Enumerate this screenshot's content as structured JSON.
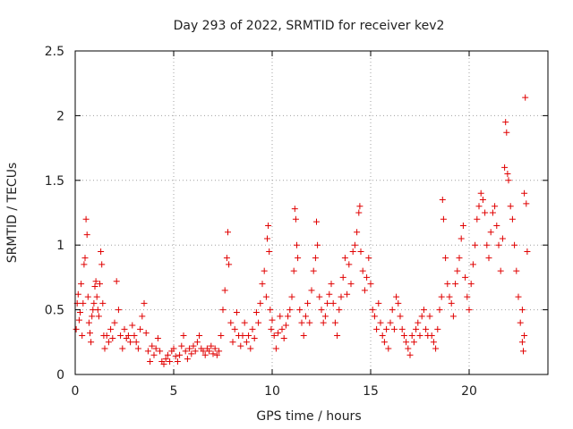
{
  "chart_data": {
    "type": "scatter",
    "title": "Day 293 of 2022, SRMTID for receiver kev2",
    "xlabel": "GPS time / hours",
    "ylabel": "SRMTID / TECUs",
    "xlim": [
      0,
      24
    ],
    "ylim": [
      0,
      2.5
    ],
    "xticks": [
      0,
      5,
      10,
      15,
      20
    ],
    "yticks": [
      0,
      0.5,
      1,
      1.5,
      2,
      2.5
    ],
    "xtick_labels": [
      "0",
      "5",
      "10",
      "15",
      "20"
    ],
    "ytick_labels": [
      "0",
      "0.5",
      "1",
      "1.5",
      "2",
      "2.5"
    ],
    "grid": true,
    "marker": "plus",
    "color": "#e00000",
    "series": [
      {
        "name": "kev2",
        "points": [
          [
            0.05,
            0.35
          ],
          [
            0.1,
            0.55
          ],
          [
            0.15,
            0.62
          ],
          [
            0.2,
            0.42
          ],
          [
            0.25,
            0.48
          ],
          [
            0.3,
            0.7
          ],
          [
            0.35,
            0.3
          ],
          [
            0.4,
            0.55
          ],
          [
            0.45,
            0.85
          ],
          [
            0.5,
            0.9
          ],
          [
            0.55,
            1.2
          ],
          [
            0.6,
            1.08
          ],
          [
            0.65,
            0.6
          ],
          [
            0.7,
            0.4
          ],
          [
            0.75,
            0.32
          ],
          [
            0.8,
            0.25
          ],
          [
            0.85,
            0.45
          ],
          [
            0.9,
            0.5
          ],
          [
            0.95,
            0.55
          ],
          [
            1.0,
            0.68
          ],
          [
            1.05,
            0.72
          ],
          [
            1.1,
            0.6
          ],
          [
            1.15,
            0.5
          ],
          [
            1.2,
            0.45
          ],
          [
            1.25,
            0.7
          ],
          [
            1.3,
            0.95
          ],
          [
            1.35,
            0.85
          ],
          [
            1.4,
            0.55
          ],
          [
            1.45,
            0.3
          ],
          [
            1.5,
            0.2
          ],
          [
            1.6,
            0.3
          ],
          [
            1.7,
            0.25
          ],
          [
            1.8,
            0.35
          ],
          [
            1.9,
            0.28
          ],
          [
            2.0,
            0.4
          ],
          [
            2.1,
            0.72
          ],
          [
            2.2,
            0.5
          ],
          [
            2.3,
            0.3
          ],
          [
            2.4,
            0.2
          ],
          [
            2.5,
            0.35
          ],
          [
            2.6,
            0.28
          ],
          [
            2.7,
            0.3
          ],
          [
            2.8,
            0.25
          ],
          [
            2.9,
            0.38
          ],
          [
            3.0,
            0.3
          ],
          [
            3.1,
            0.25
          ],
          [
            3.2,
            0.2
          ],
          [
            3.3,
            0.35
          ],
          [
            3.4,
            0.45
          ],
          [
            3.5,
            0.55
          ],
          [
            3.6,
            0.32
          ],
          [
            3.7,
            0.18
          ],
          [
            3.8,
            0.1
          ],
          [
            3.9,
            0.22
          ],
          [
            4.0,
            0.15
          ],
          [
            4.1,
            0.2
          ],
          [
            4.2,
            0.28
          ],
          [
            4.3,
            0.18
          ],
          [
            4.4,
            0.1
          ],
          [
            4.5,
            0.08
          ],
          [
            4.6,
            0.12
          ],
          [
            4.7,
            0.15
          ],
          [
            4.8,
            0.1
          ],
          [
            4.9,
            0.18
          ],
          [
            5.0,
            0.2
          ],
          [
            5.1,
            0.14
          ],
          [
            5.2,
            0.1
          ],
          [
            5.3,
            0.15
          ],
          [
            5.4,
            0.22
          ],
          [
            5.5,
            0.3
          ],
          [
            5.6,
            0.18
          ],
          [
            5.7,
            0.12
          ],
          [
            5.8,
            0.2
          ],
          [
            5.9,
            0.16
          ],
          [
            6.0,
            0.22
          ],
          [
            6.1,
            0.18
          ],
          [
            6.2,
            0.25
          ],
          [
            6.3,
            0.3
          ],
          [
            6.4,
            0.2
          ],
          [
            6.5,
            0.18
          ],
          [
            6.6,
            0.15
          ],
          [
            6.7,
            0.2
          ],
          [
            6.8,
            0.18
          ],
          [
            6.9,
            0.22
          ],
          [
            7.0,
            0.16
          ],
          [
            7.1,
            0.2
          ],
          [
            7.2,
            0.15
          ],
          [
            7.3,
            0.18
          ],
          [
            7.4,
            0.3
          ],
          [
            7.5,
            0.5
          ],
          [
            7.6,
            0.65
          ],
          [
            7.7,
            0.9
          ],
          [
            7.75,
            1.1
          ],
          [
            7.8,
            0.85
          ],
          [
            7.9,
            0.4
          ],
          [
            8.0,
            0.25
          ],
          [
            8.1,
            0.35
          ],
          [
            8.2,
            0.48
          ],
          [
            8.3,
            0.3
          ],
          [
            8.4,
            0.22
          ],
          [
            8.5,
            0.3
          ],
          [
            8.6,
            0.4
          ],
          [
            8.7,
            0.25
          ],
          [
            8.8,
            0.3
          ],
          [
            8.9,
            0.2
          ],
          [
            9.0,
            0.35
          ],
          [
            9.1,
            0.28
          ],
          [
            9.2,
            0.48
          ],
          [
            9.3,
            0.4
          ],
          [
            9.4,
            0.55
          ],
          [
            9.5,
            0.7
          ],
          [
            9.6,
            0.8
          ],
          [
            9.7,
            0.6
          ],
          [
            9.75,
            1.05
          ],
          [
            9.8,
            1.15
          ],
          [
            9.85,
            0.95
          ],
          [
            9.9,
            0.5
          ],
          [
            9.95,
            0.35
          ],
          [
            10.0,
            0.42
          ],
          [
            10.1,
            0.3
          ],
          [
            10.2,
            0.2
          ],
          [
            10.3,
            0.32
          ],
          [
            10.4,
            0.45
          ],
          [
            10.5,
            0.35
          ],
          [
            10.6,
            0.28
          ],
          [
            10.7,
            0.38
          ],
          [
            10.8,
            0.45
          ],
          [
            10.9,
            0.5
          ],
          [
            11.0,
            0.6
          ],
          [
            11.1,
            0.8
          ],
          [
            11.15,
            1.28
          ],
          [
            11.2,
            1.2
          ],
          [
            11.25,
            1.0
          ],
          [
            11.3,
            0.9
          ],
          [
            11.4,
            0.5
          ],
          [
            11.5,
            0.4
          ],
          [
            11.6,
            0.3
          ],
          [
            11.7,
            0.45
          ],
          [
            11.8,
            0.55
          ],
          [
            11.9,
            0.4
          ],
          [
            12.0,
            0.65
          ],
          [
            12.1,
            0.8
          ],
          [
            12.2,
            0.9
          ],
          [
            12.25,
            1.18
          ],
          [
            12.3,
            1.0
          ],
          [
            12.4,
            0.6
          ],
          [
            12.5,
            0.5
          ],
          [
            12.6,
            0.4
          ],
          [
            12.7,
            0.45
          ],
          [
            12.8,
            0.55
          ],
          [
            12.9,
            0.62
          ],
          [
            13.0,
            0.7
          ],
          [
            13.1,
            0.55
          ],
          [
            13.2,
            0.4
          ],
          [
            13.3,
            0.3
          ],
          [
            13.4,
            0.5
          ],
          [
            13.5,
            0.6
          ],
          [
            13.6,
            0.75
          ],
          [
            13.7,
            0.9
          ],
          [
            13.8,
            0.62
          ],
          [
            13.9,
            0.85
          ],
          [
            14.0,
            0.7
          ],
          [
            14.1,
            0.95
          ],
          [
            14.2,
            1.0
          ],
          [
            14.3,
            1.1
          ],
          [
            14.4,
            1.25
          ],
          [
            14.45,
            1.3
          ],
          [
            14.5,
            0.95
          ],
          [
            14.6,
            0.8
          ],
          [
            14.7,
            0.65
          ],
          [
            14.8,
            0.75
          ],
          [
            14.9,
            0.9
          ],
          [
            15.0,
            0.7
          ],
          [
            15.1,
            0.5
          ],
          [
            15.2,
            0.45
          ],
          [
            15.3,
            0.35
          ],
          [
            15.4,
            0.55
          ],
          [
            15.5,
            0.4
          ],
          [
            15.6,
            0.3
          ],
          [
            15.7,
            0.25
          ],
          [
            15.8,
            0.35
          ],
          [
            15.9,
            0.2
          ],
          [
            16.0,
            0.4
          ],
          [
            16.1,
            0.5
          ],
          [
            16.2,
            0.35
          ],
          [
            16.3,
            0.6
          ],
          [
            16.4,
            0.55
          ],
          [
            16.5,
            0.45
          ],
          [
            16.6,
            0.35
          ],
          [
            16.7,
            0.3
          ],
          [
            16.8,
            0.25
          ],
          [
            16.9,
            0.2
          ],
          [
            17.0,
            0.15
          ],
          [
            17.1,
            0.3
          ],
          [
            17.2,
            0.25
          ],
          [
            17.3,
            0.35
          ],
          [
            17.4,
            0.4
          ],
          [
            17.5,
            0.3
          ],
          [
            17.6,
            0.45
          ],
          [
            17.7,
            0.5
          ],
          [
            17.8,
            0.35
          ],
          [
            17.9,
            0.3
          ],
          [
            18.0,
            0.45
          ],
          [
            18.1,
            0.3
          ],
          [
            18.2,
            0.25
          ],
          [
            18.3,
            0.2
          ],
          [
            18.4,
            0.35
          ],
          [
            18.5,
            0.5
          ],
          [
            18.6,
            0.6
          ],
          [
            18.65,
            1.35
          ],
          [
            18.7,
            1.2
          ],
          [
            18.8,
            0.9
          ],
          [
            18.9,
            0.7
          ],
          [
            19.0,
            0.6
          ],
          [
            19.1,
            0.55
          ],
          [
            19.2,
            0.45
          ],
          [
            19.3,
            0.7
          ],
          [
            19.4,
            0.8
          ],
          [
            19.5,
            0.9
          ],
          [
            19.6,
            1.05
          ],
          [
            19.7,
            1.15
          ],
          [
            19.8,
            0.75
          ],
          [
            19.9,
            0.6
          ],
          [
            20.0,
            0.5
          ],
          [
            20.1,
            0.7
          ],
          [
            20.2,
            0.85
          ],
          [
            20.3,
            1.0
          ],
          [
            20.4,
            1.2
          ],
          [
            20.5,
            1.3
          ],
          [
            20.6,
            1.4
          ],
          [
            20.7,
            1.35
          ],
          [
            20.8,
            1.25
          ],
          [
            20.9,
            1.0
          ],
          [
            21.0,
            0.9
          ],
          [
            21.1,
            1.1
          ],
          [
            21.2,
            1.25
          ],
          [
            21.3,
            1.3
          ],
          [
            21.4,
            1.15
          ],
          [
            21.5,
            1.0
          ],
          [
            21.6,
            0.8
          ],
          [
            21.7,
            1.05
          ],
          [
            21.8,
            1.6
          ],
          [
            21.85,
            1.95
          ],
          [
            21.9,
            1.87
          ],
          [
            21.95,
            1.55
          ],
          [
            22.0,
            1.5
          ],
          [
            22.1,
            1.3
          ],
          [
            22.2,
            1.2
          ],
          [
            22.3,
            1.0
          ],
          [
            22.4,
            0.8
          ],
          [
            22.5,
            0.6
          ],
          [
            22.6,
            0.4
          ],
          [
            22.7,
            0.25
          ],
          [
            22.75,
            0.18
          ],
          [
            22.8,
            1.4
          ],
          [
            22.85,
            2.14
          ],
          [
            22.9,
            1.32
          ],
          [
            22.95,
            0.95
          ],
          [
            22.8,
            0.3
          ],
          [
            22.7,
            0.5
          ]
        ]
      }
    ]
  }
}
